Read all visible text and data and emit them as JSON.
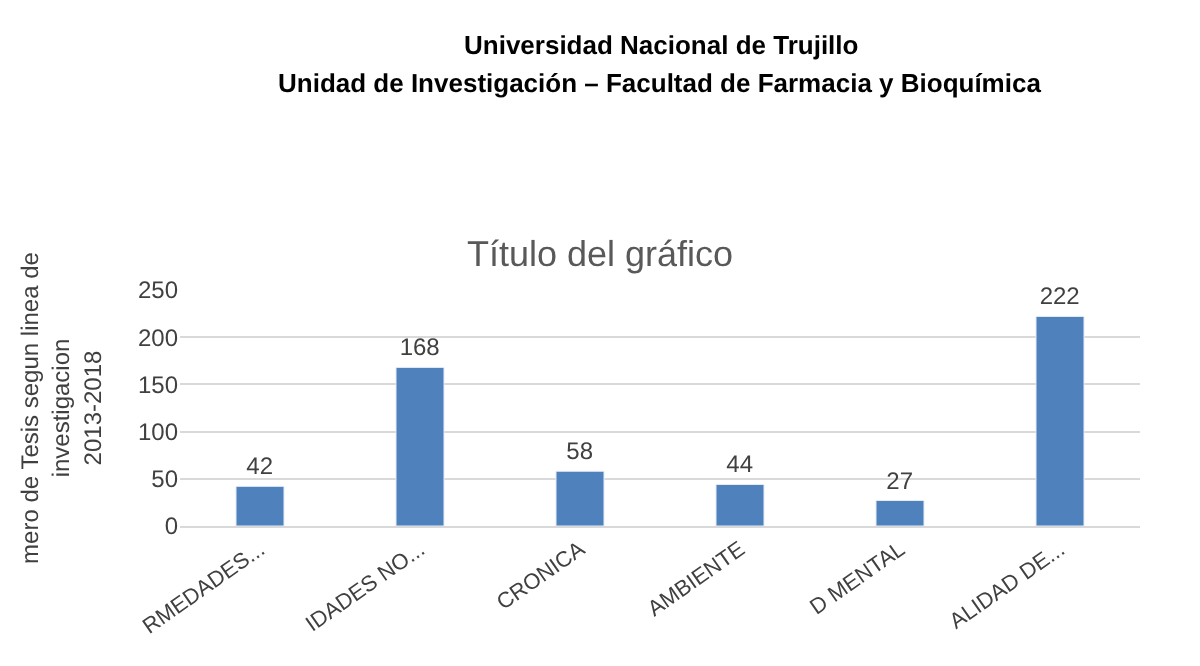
{
  "chart_data": {
    "type": "bar",
    "title": "Título del gráfico",
    "annotations": [
      "Universidad Nacional de Trujillo",
      "Unidad de Investigación – Facultad de Farmacia y Bioquímica"
    ],
    "ylabel": "mero de Tesis segun linea de investigacion 2013-2018",
    "categories": [
      "RMEDADES...",
      "IDADES NO...",
      "CRONICA",
      "AMBIENTE",
      "D MENTAL",
      "ALIDAD DE..."
    ],
    "values": [
      42,
      168,
      58,
      44,
      27,
      222
    ],
    "color": "#4f81bd",
    "ylim": [
      0,
      250
    ],
    "yticks": [
      0,
      50,
      100,
      150,
      200,
      250
    ],
    "grid": "y",
    "legend": false,
    "data_labels": true
  }
}
